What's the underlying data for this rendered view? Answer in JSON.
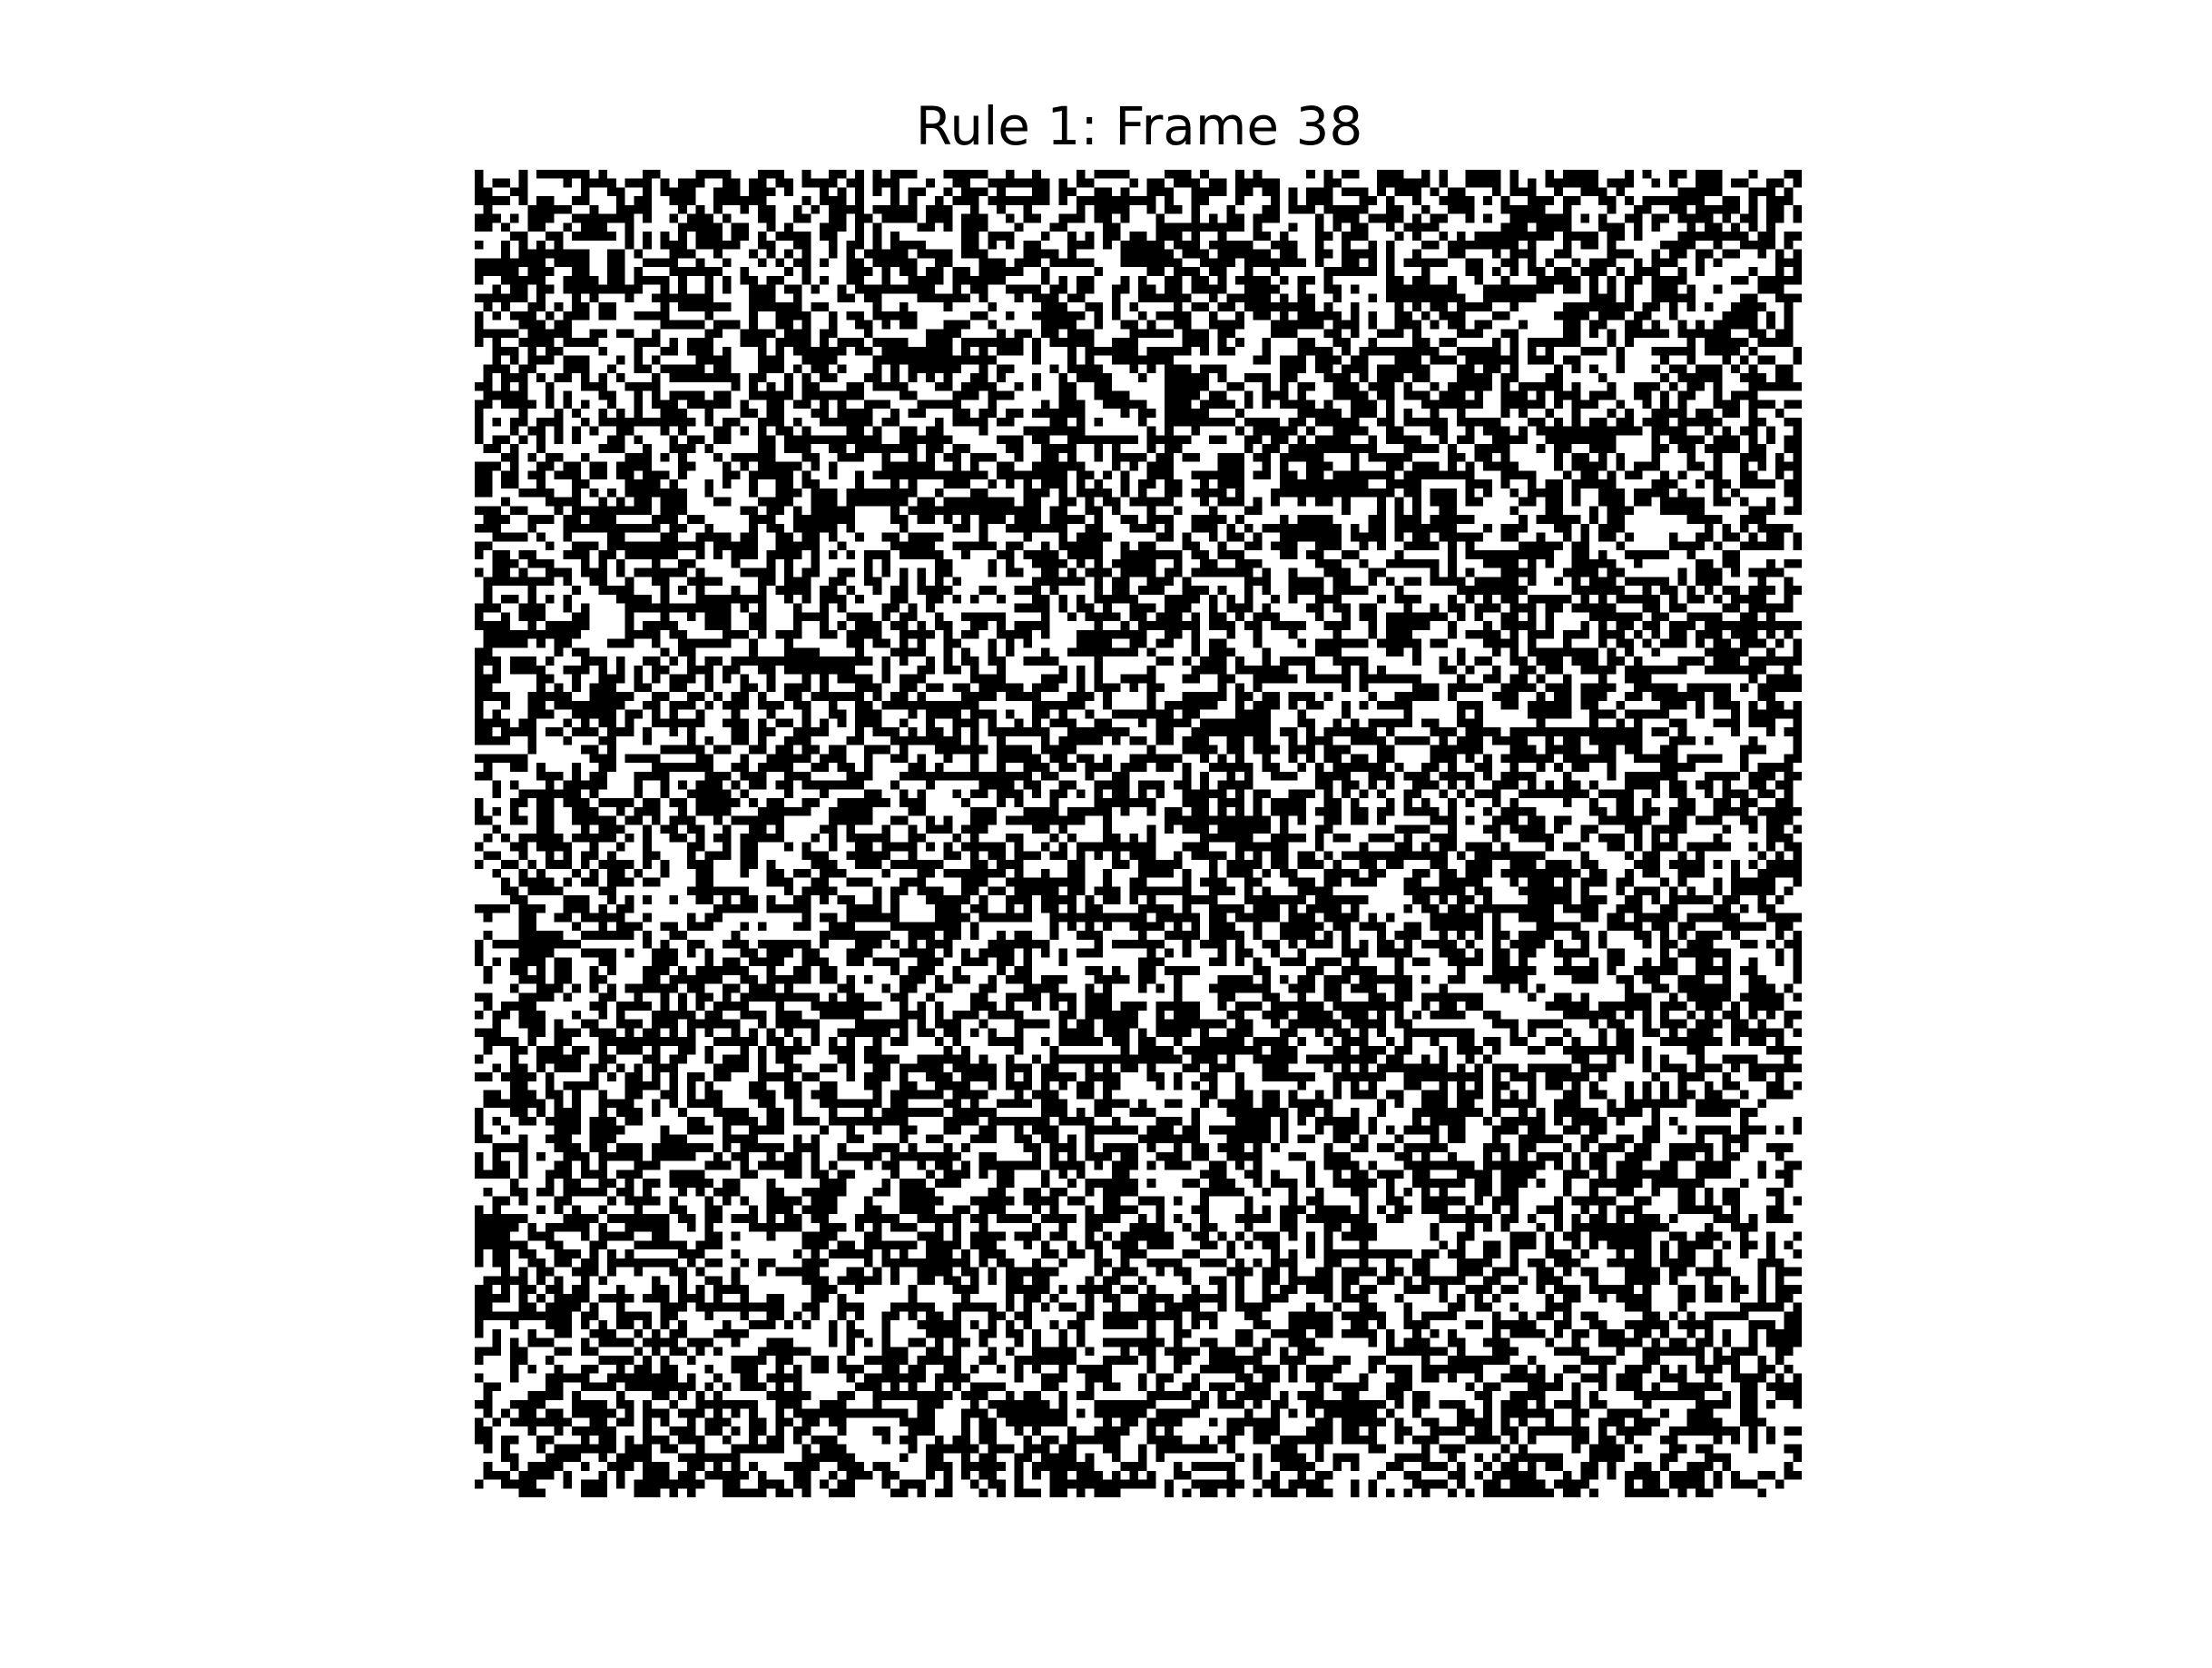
{
  "figure": {
    "title": "Rule 1: Frame 38"
  },
  "automaton": {
    "rule": 1,
    "frame": 38,
    "cell_colors": {
      "alive": "#000000",
      "dead": "#ffffff"
    },
    "axes_visible": false
  }
}
